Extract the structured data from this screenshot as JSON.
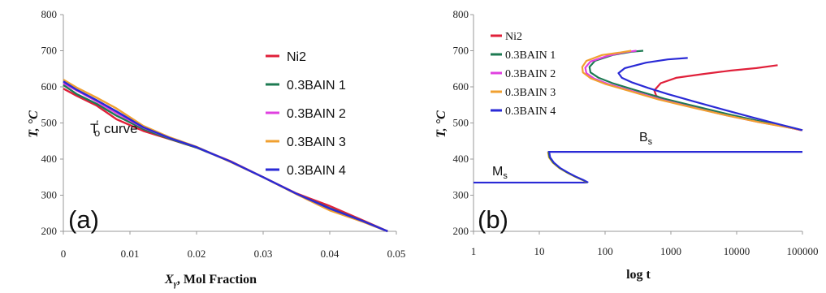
{
  "chart_data": [
    {
      "type": "line",
      "panel_label": "(a)",
      "xlabel": "X",
      "xlabel_sub": "γ",
      "xlabel_rest": ",  Mol Fraction",
      "ylabel": "T, °C",
      "xlim": [
        0,
        0.05
      ],
      "ylim": [
        200,
        800
      ],
      "xticks": [
        "0",
        "0.01",
        "0.02",
        "0.03",
        "0.04",
        "0.05"
      ],
      "xtick_values": [
        0,
        0.01,
        0.02,
        0.03,
        0.04,
        0.05
      ],
      "yticks": [
        "200",
        "300",
        "400",
        "500",
        "600",
        "700",
        "800"
      ],
      "ytick_values": [
        200,
        300,
        400,
        500,
        600,
        700,
        800
      ],
      "annotation": {
        "text_main": "T",
        "text_sub": "o",
        "text_prime": "′",
        "text_rest": " curve"
      },
      "legend_position": "top-right",
      "series": [
        {
          "name": "Ni2",
          "color": "#e0203a",
          "x": [
            0,
            0.002,
            0.005,
            0.008,
            0.012,
            0.016,
            0.02,
            0.025,
            0.03,
            0.035,
            0.04,
            0.045,
            0.0487
          ],
          "y": [
            595,
            575,
            548,
            510,
            478,
            455,
            432,
            395,
            350,
            305,
            270,
            230,
            200
          ]
        },
        {
          "name": "0.3BAIN 1",
          "color": "#1d7a52",
          "x": [
            0,
            0.002,
            0.005,
            0.008,
            0.012,
            0.016,
            0.02,
            0.025,
            0.03,
            0.035,
            0.04,
            0.045,
            0.0487
          ],
          "y": [
            605,
            580,
            553,
            520,
            483,
            456,
            432,
            394,
            350,
            304,
            264,
            228,
            200
          ]
        },
        {
          "name": "0.3BAIN 2",
          "color": "#e040e0",
          "x": [
            0,
            0.002,
            0.005,
            0.008,
            0.012,
            0.016,
            0.02,
            0.025,
            0.03,
            0.035,
            0.04,
            0.045,
            0.0487
          ],
          "y": [
            610,
            590,
            560,
            527,
            487,
            458,
            433,
            394,
            350,
            304,
            262,
            227,
            200
          ]
        },
        {
          "name": "0.3BAIN 3",
          "color": "#f0a030",
          "x": [
            0,
            0.002,
            0.005,
            0.008,
            0.012,
            0.016,
            0.02,
            0.025,
            0.03,
            0.035,
            0.04,
            0.045,
            0.0487
          ],
          "y": [
            620,
            598,
            570,
            540,
            492,
            460,
            434,
            393,
            350,
            303,
            258,
            226,
            200
          ]
        },
        {
          "name": "0.3BAIN 4",
          "color": "#2a2ad6",
          "x": [
            0,
            0.002,
            0.005,
            0.008,
            0.012,
            0.016,
            0.02,
            0.025,
            0.03,
            0.035,
            0.04,
            0.045,
            0.0487
          ],
          "y": [
            615,
            592,
            563,
            532,
            488,
            458,
            433,
            394,
            350,
            304,
            263,
            228,
            200
          ]
        }
      ]
    },
    {
      "type": "line",
      "panel_label": "(b)",
      "xlabel": "log t",
      "ylabel": "T, °C",
      "xscale": "log",
      "xlim": [
        1,
        100000
      ],
      "ylim": [
        200,
        800
      ],
      "xticks": [
        "1",
        "10",
        "100",
        "1000",
        "10000",
        "100000"
      ],
      "xtick_values": [
        1,
        10,
        100,
        1000,
        10000,
        100000
      ],
      "yticks": [
        "200",
        "300",
        "400",
        "500",
        "600",
        "700",
        "800"
      ],
      "ytick_values": [
        200,
        300,
        400,
        500,
        600,
        700,
        800
      ],
      "annotations": [
        {
          "text_main": "B",
          "text_sub": "s"
        },
        {
          "text_main": "M",
          "text_sub": "s"
        }
      ],
      "legend_position": "top-left",
      "hlines": [
        {
          "label": "Bs",
          "y": 420,
          "x_start": 13.5,
          "x_end": 100000,
          "color": "#2a2ad6"
        },
        {
          "label": "Ms",
          "y": 335,
          "x_start": 1,
          "x_end": 53,
          "color": "#2a2ad6"
        }
      ],
      "lower_c_curve": {
        "x": [
          13.5,
          14,
          16,
          20,
          26,
          34,
          45,
          53
        ],
        "y": [
          420,
          405,
          390,
          375,
          363,
          352,
          342,
          335
        ]
      },
      "series": [
        {
          "name": "Ni2",
          "color": "#e0203a",
          "x": [
            42000,
            20000,
            8000,
            3000,
            1200,
            700,
            560,
            600,
            900,
            2000,
            5000,
            12000,
            30000,
            60000,
            95000
          ],
          "y": [
            660,
            652,
            645,
            635,
            625,
            610,
            590,
            575,
            560,
            545,
            530,
            515,
            500,
            488,
            480
          ]
        },
        {
          "name": "0.3BAIN 1",
          "color": "#1d7a52",
          "x": [
            380,
            250,
            130,
            70,
            58,
            60,
            80,
            130,
            300,
            800,
            2500,
            8000,
            25000,
            60000,
            100000
          ],
          "y": [
            700,
            697,
            688,
            672,
            655,
            640,
            625,
            610,
            590,
            567,
            545,
            523,
            503,
            490,
            480
          ]
        },
        {
          "name": "0.3BAIN 2",
          "color": "#e040e0",
          "x": [
            300,
            200,
            110,
            60,
            50,
            52,
            68,
            110,
            260,
            700,
            2200,
            7000,
            22000,
            55000,
            100000
          ],
          "y": [
            700,
            696,
            686,
            670,
            653,
            638,
            623,
            608,
            588,
            565,
            543,
            521,
            502,
            489,
            480
          ]
        },
        {
          "name": "0.3BAIN 3",
          "color": "#f0a030",
          "x": [
            250,
            170,
            90,
            52,
            45,
            46,
            60,
            100,
            240,
            650,
            2100,
            7000,
            22000,
            55000,
            100000
          ],
          "y": [
            700,
            695,
            688,
            672,
            655,
            640,
            624,
            608,
            588,
            565,
            543,
            521,
            502,
            489,
            480
          ]
        },
        {
          "name": "0.3BAIN 4",
          "color": "#2a2ad6",
          "x": [
            1800,
            900,
            420,
            200,
            160,
            180,
            260,
            450,
            900,
            2200,
            6000,
            17000,
            45000,
            100000
          ],
          "y": [
            680,
            676,
            667,
            652,
            638,
            625,
            612,
            597,
            580,
            560,
            538,
            516,
            496,
            480
          ]
        }
      ]
    }
  ]
}
